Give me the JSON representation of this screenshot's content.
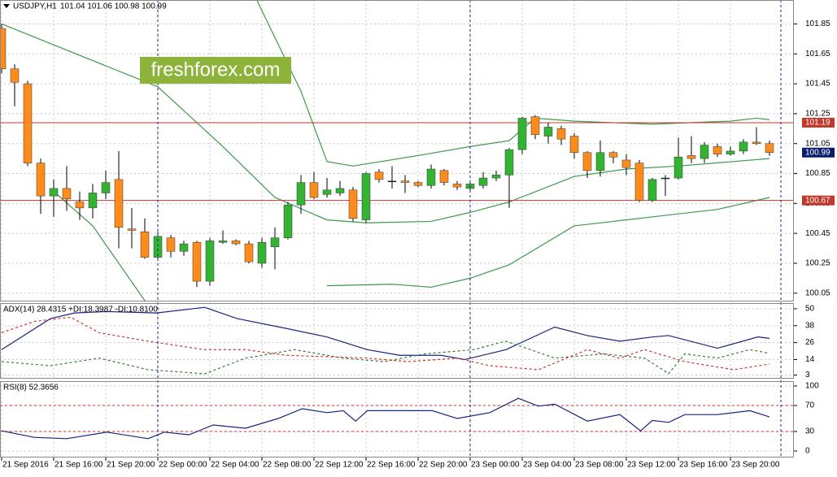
{
  "header": {
    "symbol": "USDJPY,H1",
    "quote": "101.04 101.06 100.98 100.99"
  },
  "watermark": "freshforex.com",
  "chart_data": [
    {
      "type": "candlestick",
      "categories": [
        "21 Sep 2016",
        null,
        null,
        null,
        "21 Sep 16:00",
        null,
        null,
        null,
        "21 Sep 20:00",
        null,
        null,
        null,
        "22 Sep 00:00",
        null,
        null,
        null,
        "22 Sep 04:00",
        null,
        null,
        null,
        "22 Sep 08:00",
        null,
        null,
        null,
        "22 Sep 12:00",
        null,
        null,
        null,
        "22 Sep 16:00",
        null,
        null,
        null,
        "22 Sep 20:00",
        null,
        null,
        null,
        "23 Sep 00:00",
        null,
        null,
        null,
        "23 Sep 04:00",
        null,
        null,
        null,
        "23 Sep 08:00",
        null,
        null,
        null,
        "23 Sep 12:00",
        null,
        null,
        null,
        "23 Sep 16:00",
        null,
        null,
        null,
        "23 Sep 20:00",
        null,
        null,
        null
      ],
      "open": [
        101.82,
        101.55,
        101.45,
        100.92,
        100.7,
        100.75,
        100.66,
        100.62,
        100.72,
        100.81,
        100.48,
        100.46,
        100.29,
        100.42,
        100.33,
        100.39,
        100.13,
        100.39,
        100.4,
        100.38,
        100.25,
        100.36,
        100.42,
        100.64,
        100.79,
        100.71,
        100.72,
        100.74,
        100.54,
        100.86,
        100.8,
        100.8,
        100.79,
        100.77,
        100.87,
        100.78,
        100.75,
        100.77,
        100.82,
        100.84,
        101.01,
        101.23,
        101.1,
        101.15,
        101.1,
        100.99,
        100.87,
        100.99,
        100.94,
        100.92,
        100.67,
        100.82,
        100.82,
        100.97,
        100.95,
        101.03,
        100.98,
        101.0,
        101.06,
        101.05
      ],
      "high": [
        101.85,
        101.58,
        101.47,
        100.95,
        100.81,
        100.9,
        100.73,
        100.78,
        100.87,
        101.0,
        100.62,
        100.55,
        100.46,
        100.44,
        100.4,
        100.4,
        100.42,
        100.47,
        100.41,
        100.4,
        100.42,
        100.49,
        100.66,
        100.84,
        100.86,
        100.82,
        100.8,
        100.76,
        100.86,
        100.88,
        100.9,
        100.84,
        100.8,
        100.91,
        100.88,
        100.8,
        100.8,
        100.86,
        100.87,
        101.02,
        101.23,
        101.24,
        101.19,
        101.17,
        101.12,
        101.0,
        101.07,
        101.0,
        100.98,
        100.94,
        100.82,
        100.84,
        101.09,
        101.1,
        101.06,
        101.05,
        101.03,
        101.08,
        101.16,
        101.07
      ],
      "low": [
        101.52,
        101.3,
        100.9,
        100.58,
        100.56,
        100.6,
        100.54,
        100.55,
        100.68,
        100.35,
        100.35,
        100.28,
        100.27,
        100.29,
        100.3,
        100.09,
        100.1,
        100.38,
        100.37,
        100.25,
        100.22,
        100.21,
        100.41,
        100.58,
        100.68,
        100.69,
        100.7,
        100.53,
        100.52,
        100.79,
        100.75,
        100.72,
        100.76,
        100.75,
        100.77,
        100.74,
        100.73,
        100.75,
        100.8,
        100.62,
        100.98,
        101.08,
        101.05,
        101.04,
        100.95,
        100.82,
        100.83,
        100.92,
        100.84,
        100.66,
        100.66,
        100.7,
        100.81,
        100.92,
        100.92,
        100.96,
        100.97,
        100.98,
        101.04,
        100.97
      ],
      "close": [
        101.55,
        101.46,
        100.92,
        100.7,
        100.75,
        100.68,
        100.62,
        100.72,
        100.79,
        100.49,
        100.47,
        100.29,
        100.43,
        100.33,
        100.38,
        100.13,
        100.4,
        100.4,
        100.38,
        100.26,
        100.39,
        100.42,
        100.64,
        100.79,
        100.69,
        100.74,
        100.75,
        100.55,
        100.85,
        100.81,
        100.8,
        100.79,
        100.77,
        100.88,
        100.79,
        100.76,
        100.78,
        100.82,
        100.84,
        101.01,
        101.22,
        101.11,
        101.16,
        101.08,
        100.99,
        100.87,
        100.99,
        100.96,
        100.89,
        100.67,
        100.81,
        100.82,
        100.96,
        100.95,
        101.04,
        100.98,
        101.0,
        101.06,
        101.05,
        100.99
      ],
      "up_color": "#32b432",
      "down_color": "#ff8c1a",
      "ylim": [
        100.0,
        102.01
      ],
      "yticks": [
        100.05,
        100.25,
        100.45,
        100.65,
        100.85,
        101.05,
        101.25,
        101.45,
        101.65,
        101.85
      ],
      "grid": true,
      "hlines": [
        101.19,
        100.67
      ],
      "hline_color": "#c0392b",
      "last_price": 100.99,
      "last_price_color": "#0a1f6b",
      "bands": [
        {
          "color": "#3c9a4c",
          "x": [
            0,
            4,
            8,
            12,
            17,
            21,
            25,
            28,
            33,
            36,
            39,
            44,
            48,
            52,
            59
          ],
          "values": [
            101.85,
            101.71,
            101.57,
            101.43,
            101.03,
            100.69,
            100.54,
            100.52,
            100.53,
            100.59,
            100.66,
            100.83,
            100.88,
            100.9,
            100.95
          ]
        },
        {
          "color": "#3c9a4c",
          "x": [
            19.6,
            23,
            25,
            27,
            32,
            36,
            39,
            41,
            44,
            50,
            56,
            58,
            59
          ],
          "values": [
            102.01,
            101.4,
            100.93,
            100.9,
            100.97,
            101.03,
            101.07,
            101.22,
            101.2,
            101.18,
            101.2,
            101.22,
            101.21
          ]
        },
        {
          "color": "#3c9a4c",
          "x": [
            4,
            7,
            11,
            18,
            25,
            30,
            33,
            36,
            39,
            44,
            47,
            51,
            55,
            59
          ],
          "values": [
            100.73,
            100.5,
            100.0,
            null,
            100.1,
            100.11,
            100.09,
            100.15,
            100.24,
            100.5,
            100.53,
            100.57,
            100.61,
            100.69
          ]
        }
      ]
    },
    {
      "type": "line",
      "title": "ADX(14) 28.4315 +DI:18.3987 -DI:10.8100",
      "ylim": [
        1,
        54
      ],
      "yticks": [
        3,
        14,
        26,
        38,
        50
      ],
      "grid": true,
      "series": [
        {
          "color": "#1a237e",
          "dashed": false,
          "x": [
            0,
            3.75,
            5.6,
            8.1,
            11.9,
            15.6,
            18.1,
            21.9,
            25,
            28.1,
            30.6,
            33.75,
            35.6,
            38.75,
            42.5,
            45,
            47.5,
            50,
            51.25,
            55,
            58.1,
            59
          ],
          "values": [
            21,
            43,
            47,
            48,
            47,
            51,
            43,
            36,
            30,
            21,
            17,
            17,
            14,
            21,
            37,
            31,
            27,
            30,
            31,
            22,
            30,
            29
          ]
        },
        {
          "color": "#2e7d32",
          "dashed": true,
          "x": [
            0,
            3.75,
            7.5,
            11.25,
            15.6,
            18.75,
            22.5,
            26.25,
            29.4,
            32.5,
            36.25,
            38.75,
            42.5,
            46.25,
            49.4,
            51.25,
            52.5,
            55,
            57.5,
            59
          ],
          "values": [
            12.5,
            9.6,
            15,
            6.8,
            3.9,
            15,
            21,
            15,
            12.5,
            18,
            21,
            27,
            15,
            18,
            15,
            4,
            18,
            15,
            21,
            18.4
          ]
        },
        {
          "color": "#d32f2f",
          "dashed": true,
          "x": [
            0,
            2.5,
            5.3,
            7.5,
            11.25,
            15.6,
            18.75,
            21.9,
            28.1,
            31.25,
            35,
            37.5,
            41.25,
            45,
            47.5,
            49.4,
            52.5,
            56.25,
            59
          ],
          "values": [
            33,
            41,
            44,
            33,
            27,
            21,
            21,
            17,
            15,
            12.5,
            15,
            9.6,
            6.8,
            21,
            15,
            21,
            12.5,
            6.8,
            10.8
          ]
        }
      ]
    },
    {
      "type": "line",
      "title": "RSI(8) 52.3656",
      "ylim": [
        -8.75,
        107.5
      ],
      "yticks": [
        0,
        30,
        70,
        100
      ],
      "grid": true,
      "levels": [
        30,
        70
      ],
      "level_color": "#d32f2f",
      "series": [
        {
          "color": "#1a237e",
          "dashed": false,
          "x": [
            0,
            2.5,
            5,
            8.1,
            11.25,
            12.5,
            14.4,
            16.25,
            18.75,
            21.25,
            23.1,
            25,
            26.25,
            27.2,
            28.1,
            31.25,
            33.1,
            35,
            37.5,
            39.7,
            41.25,
            42.5,
            45,
            47.5,
            49.1,
            50,
            51.25,
            52.5,
            55,
            57.5,
            59
          ],
          "values": [
            31,
            21,
            19,
            29,
            19,
            29,
            25,
            40,
            35,
            50,
            65,
            59,
            62,
            46,
            62,
            62,
            62,
            50,
            59,
            81,
            69,
            72,
            46,
            56,
            31,
            47,
            44,
            56,
            56,
            62,
            52.4
          ]
        }
      ]
    }
  ]
}
